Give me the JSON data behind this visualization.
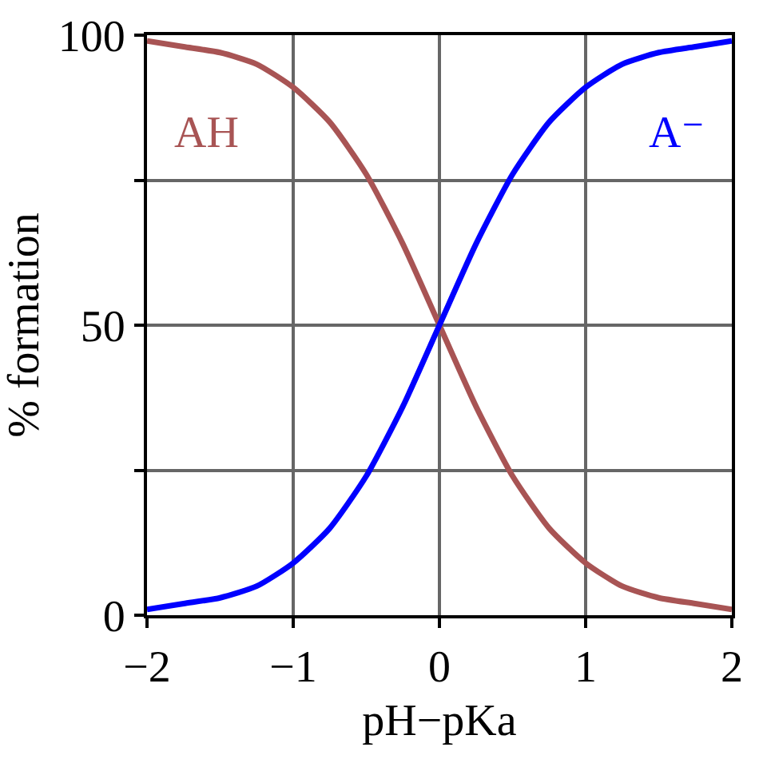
{
  "chart_data": {
    "type": "line",
    "xlabel": "pH−pKa",
    "ylabel": "% formation",
    "x": [
      -2,
      -1.75,
      -1.5,
      -1.25,
      -1,
      -0.75,
      -0.5,
      -0.25,
      0,
      0.25,
      0.5,
      0.75,
      1,
      1.25,
      1.5,
      1.75,
      2
    ],
    "series": [
      {
        "name": "AH",
        "color": "#a85454",
        "values": [
          99,
          98,
          97,
          95,
          91,
          85,
          76,
          64,
          50,
          36,
          24,
          15,
          9,
          5,
          3,
          2,
          1
        ]
      },
      {
        "name": "A⁻",
        "color": "#0000ff",
        "values": [
          1,
          2,
          3,
          5,
          9,
          15,
          24,
          36,
          50,
          64,
          76,
          85,
          91,
          95,
          97,
          98,
          99
        ]
      }
    ],
    "xlim": [
      -2,
      2
    ],
    "xticks": [
      {
        "value": -2,
        "label": "−2"
      },
      {
        "value": -1,
        "label": "−1"
      },
      0,
      1,
      2
    ],
    "ylim": [
      0,
      100
    ],
    "yticks": [
      0,
      {
        "value": 25,
        "label": null
      },
      50,
      {
        "value": 75,
        "label": null
      },
      100
    ],
    "grid": true,
    "legend": false,
    "marker": "none",
    "line_style": "solid"
  }
}
